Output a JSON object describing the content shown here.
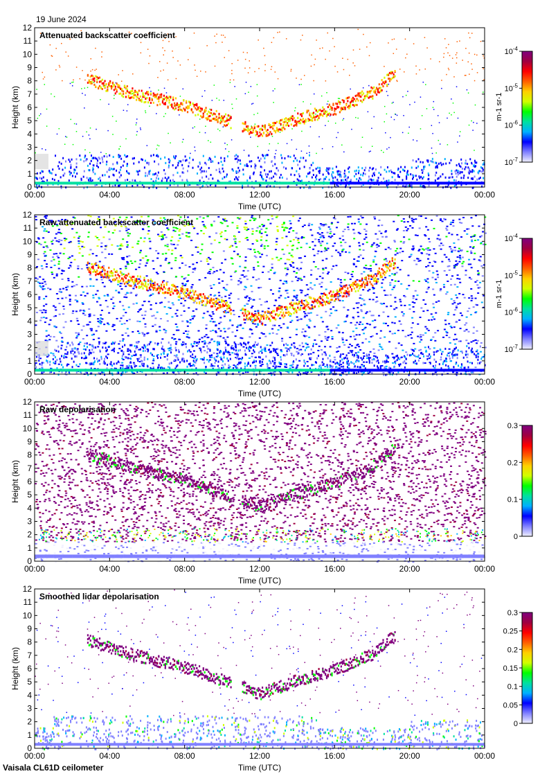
{
  "date": "19 June 2024",
  "footer": "Vaisala CL61D ceilometer",
  "xlabel": "Time (UTC)",
  "ylabel": "Height (km)",
  "colors": {
    "cmap": [
      "#f0f0ff",
      "#8080ff",
      "#0000ff",
      "#00b0ff",
      "#00e0a0",
      "#00ff00",
      "#d0ff00",
      "#ffd000",
      "#ff6000",
      "#ff0000",
      "#a00040",
      "#800080"
    ],
    "background": "#ffffff"
  },
  "chart_data": [
    {
      "type": "heatmap",
      "title": "Attenuated backscatter coefficient",
      "xlabel": "Time (UTC)",
      "ylabel": "Height (km)",
      "x_ticks": [
        "00:00",
        "04:00",
        "08:00",
        "12:00",
        "16:00",
        "20:00",
        "00:00"
      ],
      "y_ticks": [
        "0",
        "1",
        "2",
        "3",
        "4",
        "5",
        "6",
        "7",
        "8",
        "9",
        "10",
        "11",
        "12"
      ],
      "ylim": [
        0,
        12
      ],
      "colorbar": {
        "scale": "log",
        "ticks": [
          "10-7",
          "10-6",
          "10-5",
          "10-4"
        ],
        "unit": "m-1 sr-1"
      },
      "features": [
        {
          "name": "elevated cloud layer",
          "time_h": [
            2.8,
            5,
            8,
            10,
            12,
            14,
            16,
            18,
            19
          ],
          "height_km": [
            8.0,
            7.0,
            6.0,
            5.0,
            4.0,
            5.0,
            5.8,
            7.0,
            8.2
          ]
        },
        {
          "name": "boundary layer",
          "time_h": [
            0,
            24
          ],
          "height_km": [
            0,
            2.5
          ]
        }
      ]
    },
    {
      "type": "heatmap",
      "title": "Raw attenuated backscatter coefficient",
      "xlabel": "Time (UTC)",
      "ylabel": "Height (km)",
      "x_ticks": [
        "00:00",
        "04:00",
        "08:00",
        "12:00",
        "16:00",
        "20:00",
        "00:00"
      ],
      "y_ticks": [
        "0",
        "1",
        "2",
        "3",
        "4",
        "5",
        "6",
        "7",
        "8",
        "9",
        "10",
        "11",
        "12"
      ],
      "ylim": [
        0,
        12
      ],
      "colorbar": {
        "scale": "log",
        "ticks": [
          "10-7",
          "10-6",
          "10-5",
          "10-4"
        ],
        "unit": "m-1 sr-1"
      },
      "features": [
        {
          "name": "elevated cloud layer",
          "time_h": [
            2.8,
            5,
            8,
            10,
            12,
            14,
            16,
            18,
            19
          ],
          "height_km": [
            8.0,
            7.0,
            6.0,
            5.0,
            4.0,
            5.0,
            5.8,
            7.0,
            8.2
          ]
        },
        {
          "name": "noise",
          "time_h": [
            0,
            24
          ],
          "height_km": [
            0,
            12
          ]
        }
      ]
    },
    {
      "type": "heatmap",
      "title": "Raw depolarisation",
      "xlabel": "Time (UTC)",
      "ylabel": "Height (km)",
      "x_ticks": [
        "00:00",
        "04:00",
        "08:00",
        "12:00",
        "16:00",
        "20:00",
        "00:00"
      ],
      "y_ticks": [
        "0",
        "1",
        "2",
        "3",
        "4",
        "5",
        "6",
        "7",
        "8",
        "9",
        "10",
        "11",
        "12"
      ],
      "ylim": [
        0,
        12
      ],
      "colorbar": {
        "scale": "linear",
        "ticks": [
          "0",
          "0.1",
          "0.2",
          "0.3"
        ],
        "range": [
          0,
          0.3
        ]
      },
      "features": [
        {
          "name": "elevated cloud layer",
          "time_h": [
            2.8,
            5,
            8,
            10,
            12,
            14,
            16,
            18,
            19
          ],
          "height_km": [
            8.0,
            7.0,
            6.0,
            5.0,
            4.0,
            5.0,
            5.8,
            7.0,
            8.2
          ]
        }
      ]
    },
    {
      "type": "heatmap",
      "title": "Smoothed lidar depolarisation",
      "xlabel": "Time (UTC)",
      "ylabel": "Height (km)",
      "x_ticks": [
        "00:00",
        "04:00",
        "08:00",
        "12:00",
        "16:00",
        "20:00",
        "00:00"
      ],
      "y_ticks": [
        "0",
        "1",
        "2",
        "3",
        "4",
        "5",
        "6",
        "7",
        "8",
        "9",
        "10",
        "11",
        "12"
      ],
      "ylim": [
        0,
        12
      ],
      "colorbar": {
        "scale": "linear",
        "ticks": [
          "0",
          "0.05",
          "0.1",
          "0.15",
          "0.2",
          "0.25",
          "0.3"
        ],
        "range": [
          0,
          0.3
        ]
      },
      "features": [
        {
          "name": "elevated cloud layer",
          "time_h": [
            2.8,
            5,
            8,
            10,
            12,
            14,
            16,
            18,
            19
          ],
          "height_km": [
            8.0,
            7.0,
            6.0,
            5.0,
            4.0,
            5.0,
            5.8,
            7.0,
            8.2
          ]
        },
        {
          "name": "boundary layer",
          "time_h": [
            0,
            24
          ],
          "height_km": [
            0,
            2.5
          ]
        }
      ]
    }
  ]
}
